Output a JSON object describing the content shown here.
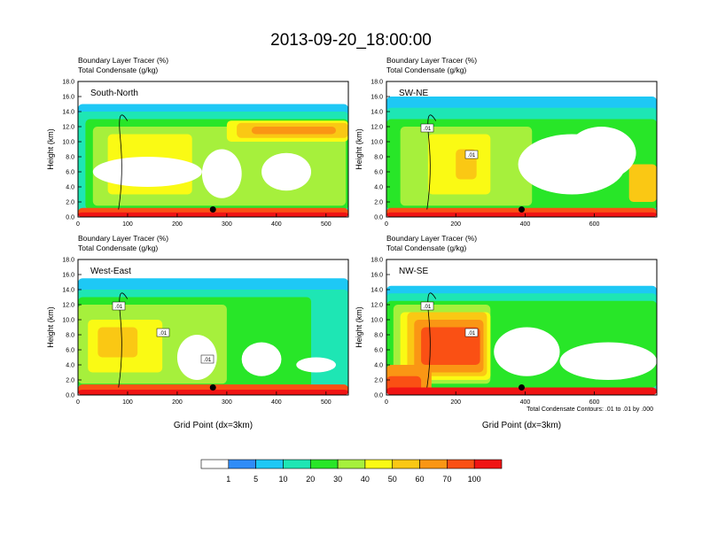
{
  "figure": {
    "title": "2013-09-20_18:00:00",
    "footnote": "Total Condensate Contours: .01 to .01 by .000",
    "xlabel": "Grid Point (dx=3km)",
    "ylabel": "Height (km)"
  },
  "chart_data": [
    {
      "type": "heatmap",
      "panel": "South-North",
      "subtitle_left": "Boundary Layer Tracer",
      "subtitle_left_unit": "(%)",
      "subtitle_left2": "Total Condensate",
      "subtitle_left2_unit": "(g/kg)",
      "ylabel": "Height (km)",
      "xlabel": "",
      "xlim": [
        0,
        545
      ],
      "ylim": [
        0,
        18
      ],
      "xticks": [
        0,
        100,
        200,
        300,
        400,
        500
      ],
      "yticks": [
        "0.0",
        "2.0",
        "4.0",
        "6.0",
        "8.0",
        "10.0",
        "12.0",
        "14.0",
        "16.0",
        "18.0"
      ],
      "marker": {
        "x": 272,
        "y": 1.0
      },
      "contour_labels": []
    },
    {
      "type": "heatmap",
      "panel": "SW-NE",
      "subtitle_left": "Boundary Layer Tracer",
      "subtitle_left_unit": "(%)",
      "subtitle_left2": "Total Condensate",
      "subtitle_left2_unit": "(g/kg)",
      "ylabel": "Height (km)",
      "xlabel": "",
      "xlim": [
        0,
        780
      ],
      "ylim": [
        0,
        18
      ],
      "xticks": [
        0,
        200,
        400,
        600
      ],
      "yticks": [
        "0.0",
        "2.0",
        "4.0",
        "6.0",
        "8.0",
        "10.0",
        "12.0",
        "14.0",
        "16.0",
        "18.0"
      ],
      "marker": {
        "x": 390,
        "y": 1.0
      },
      "contour_labels": [
        ".01",
        ".01"
      ]
    },
    {
      "type": "heatmap",
      "panel": "West-East",
      "subtitle_left": "Boundary Layer Tracer",
      "subtitle_left_unit": "(%)",
      "subtitle_left2": "Total Condensate",
      "subtitle_left2_unit": "(g/kg)",
      "ylabel": "Height (km)",
      "xlabel": "Grid Point (dx=3km)",
      "xlim": [
        0,
        545
      ],
      "ylim": [
        0,
        18
      ],
      "xticks": [
        0,
        100,
        200,
        300,
        400,
        500
      ],
      "yticks": [
        "0.0",
        "2.0",
        "4.0",
        "6.0",
        "8.0",
        "10.0",
        "12.0",
        "14.0",
        "16.0",
        "18.0"
      ],
      "marker": {
        "x": 272,
        "y": 1.0
      },
      "contour_labels": [
        ".01",
        ".01",
        ".01"
      ]
    },
    {
      "type": "heatmap",
      "panel": "NW-SE",
      "subtitle_left": "Boundary Layer Tracer",
      "subtitle_left_unit": "(%)",
      "subtitle_left2": "Total Condensate",
      "subtitle_left2_unit": "(g/kg)",
      "ylabel": "Height (km)",
      "xlabel": "Grid Point (dx=3km)",
      "xlim": [
        0,
        780
      ],
      "ylim": [
        0,
        18
      ],
      "xticks": [
        0,
        200,
        400,
        600
      ],
      "yticks": [
        "0.0",
        "2.0",
        "4.0",
        "6.0",
        "8.0",
        "10.0",
        "12.0",
        "14.0",
        "16.0",
        "18.0"
      ],
      "marker": {
        "x": 390,
        "y": 1.0
      },
      "contour_labels": [
        ".01",
        ".01"
      ]
    }
  ],
  "colorbar": {
    "labels": [
      "1",
      "5",
      "10",
      "20",
      "30",
      "40",
      "50",
      "60",
      "70",
      "100"
    ],
    "colors": [
      "#ffffff",
      "#2f8cf7",
      "#1ec8f5",
      "#1ee6b4",
      "#28e628",
      "#a6f03c",
      "#fafa14",
      "#fac814",
      "#fa9614",
      "#fa5014",
      "#f01414"
    ]
  }
}
